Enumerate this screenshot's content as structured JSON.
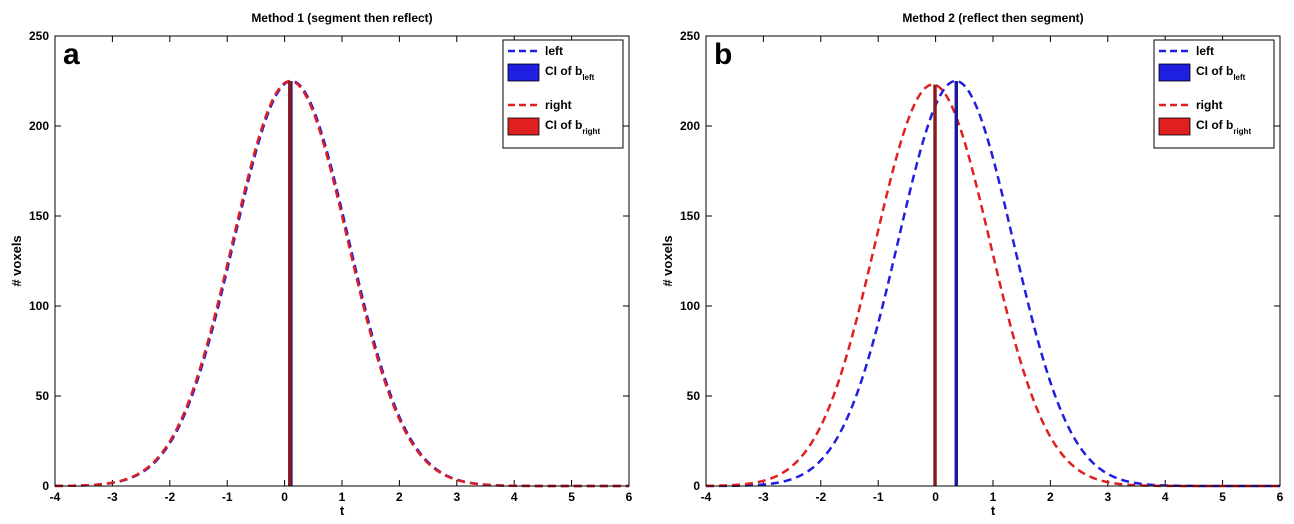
{
  "colors": {
    "left": "#1f1fe0",
    "right": "#e02020",
    "ci_left_line": "#1a1a9a",
    "ci_right_line": "#8b1a1a"
  },
  "chart_data": [
    {
      "type": "line",
      "panel_letter": "a",
      "title": "Method 1 (segment then reflect)",
      "xlabel": "t",
      "ylabel": "# voxels",
      "xlim": [
        -4,
        6
      ],
      "ylim": [
        0,
        250
      ],
      "xticks": [
        -4,
        -3,
        -2,
        -1,
        0,
        1,
        2,
        3,
        4,
        5,
        6
      ],
      "yticks": [
        0,
        50,
        100,
        150,
        200,
        250
      ],
      "grid": false,
      "legend_position": "top-right",
      "legend": {
        "left": "left",
        "ci_left_main": "CI of b",
        "ci_left_sub": "left",
        "right": "right",
        "ci_right_main": "CI of b",
        "ci_right_sub": "right"
      },
      "series": [
        {
          "name": "left",
          "style": "dashed",
          "peak": 225,
          "mean": 0.12,
          "sd": 1.0
        },
        {
          "name": "right",
          "style": "dashed",
          "peak": 225,
          "mean": 0.1,
          "sd": 1.0
        }
      ],
      "ci": [
        {
          "name": "CI of b left",
          "x": [
            0.08,
            0.14
          ],
          "top": 225
        },
        {
          "name": "CI of b right",
          "x": [
            0.06,
            0.12
          ],
          "top": 225
        }
      ]
    },
    {
      "type": "line",
      "panel_letter": "b",
      "title": "Method 2 (reflect then segment)",
      "xlabel": "t",
      "ylabel": "# voxels",
      "xlim": [
        -4,
        6
      ],
      "ylim": [
        0,
        250
      ],
      "xticks": [
        -4,
        -3,
        -2,
        -1,
        0,
        1,
        2,
        3,
        4,
        5,
        6
      ],
      "yticks": [
        0,
        50,
        100,
        150,
        200,
        250
      ],
      "grid": false,
      "legend_position": "top-right",
      "legend": {
        "left": "left",
        "ci_left_main": "CI of b",
        "ci_left_sub": "left",
        "right": "right",
        "ci_right_main": "CI of b",
        "ci_right_sub": "right"
      },
      "series": [
        {
          "name": "left",
          "style": "dashed",
          "peak": 225,
          "mean": 0.35,
          "sd": 1.0
        },
        {
          "name": "right",
          "style": "dashed",
          "peak": 223,
          "mean": -0.05,
          "sd": 1.0
        }
      ],
      "ci": [
        {
          "name": "CI of b left",
          "x": [
            0.33,
            0.39
          ],
          "top": 225
        },
        {
          "name": "CI of b right",
          "x": [
            -0.04,
            0.02
          ],
          "top": 223
        }
      ]
    }
  ]
}
